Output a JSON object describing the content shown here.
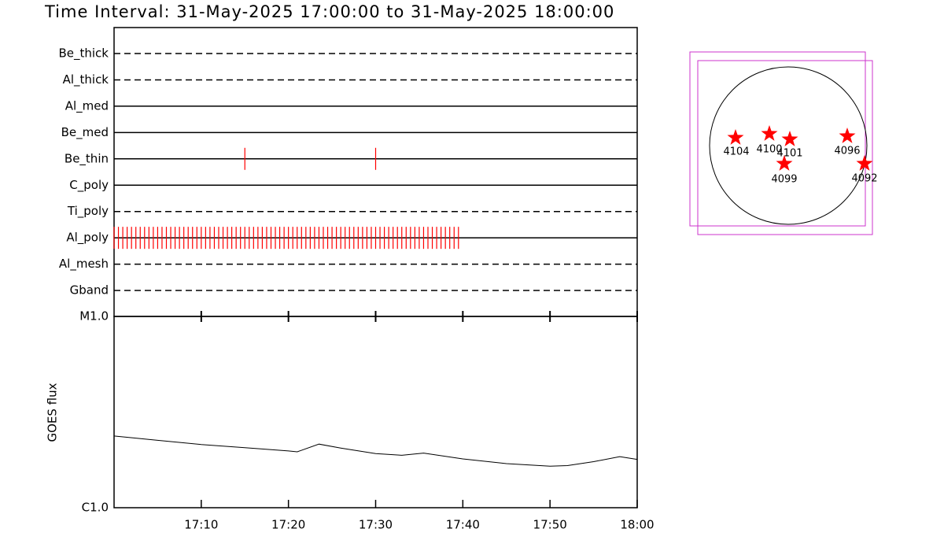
{
  "title": "Time Interval: 31-May-2025 17:00:00 to 31-May-2025 18:00:00",
  "chart_data": [
    {
      "type": "timeline",
      "categories": [
        "Be_thick",
        "Al_thick",
        "Al_med",
        "Be_med",
        "Be_thin",
        "C_poly",
        "Ti_poly",
        "Al_poly",
        "Al_mesh",
        "Gband"
      ],
      "line_styles": [
        "dashed",
        "dashed",
        "solid",
        "solid",
        "solid",
        "solid",
        "dashed",
        "solid",
        "dashed",
        "dashed"
      ],
      "xlim": [
        0,
        60
      ],
      "color": "#ff0000",
      "series": [
        {
          "name": "Be_thin",
          "x": [
            15,
            30
          ]
        },
        {
          "name": "Al_poly",
          "x": [
            0,
            0.5,
            1,
            1.5,
            2,
            2.5,
            3,
            3.5,
            4,
            4.5,
            5,
            5.5,
            6,
            6.5,
            7,
            7.5,
            8,
            8.5,
            9,
            9.5,
            10,
            10.5,
            11,
            11.5,
            12,
            12.5,
            13,
            13.5,
            14,
            14.5,
            15,
            15.5,
            16,
            16.5,
            17,
            17.5,
            18,
            18.5,
            19,
            19.5,
            20,
            20.5,
            21,
            21.5,
            22,
            22.5,
            23,
            23.5,
            24,
            24.5,
            25,
            25.5,
            26,
            26.5,
            27,
            27.5,
            28,
            28.5,
            29,
            29.5,
            30,
            30.5,
            31,
            31.5,
            32,
            32.5,
            33,
            33.5,
            34,
            34.5,
            35,
            35.5,
            36,
            36.5,
            37,
            37.5,
            38,
            38.5,
            39,
            39.5
          ]
        }
      ]
    },
    {
      "type": "line",
      "y_label": "GOES flux",
      "log_scale": true,
      "xlim": [
        0,
        60
      ],
      "xticks": [
        {
          "value": 10,
          "label": "17:10"
        },
        {
          "value": 20,
          "label": "17:20"
        },
        {
          "value": 30,
          "label": "17:30"
        },
        {
          "value": 40,
          "label": "17:40"
        },
        {
          "value": 50,
          "label": "17:50"
        },
        {
          "value": 60,
          "label": "18:00"
        }
      ],
      "ylim": [
        1e-06,
        1e-05
      ],
      "yticks": [
        {
          "value": 1e-06,
          "label": "C1.0"
        },
        {
          "value": 1e-05,
          "label": "M1.0"
        }
      ],
      "color": "#000000",
      "x": [
        0,
        5,
        10,
        15,
        20,
        21,
        23.5,
        26,
        30,
        33,
        35.5,
        40,
        45,
        50,
        52,
        55,
        58,
        60
      ],
      "values": [
        2.37e-06,
        2.25e-06,
        2.14e-06,
        2.06e-06,
        1.98e-06,
        1.96e-06,
        2.15e-06,
        2.05e-06,
        1.92e-06,
        1.88e-06,
        1.93e-06,
        1.8e-06,
        1.7e-06,
        1.65e-06,
        1.66e-06,
        1.74e-06,
        1.85e-06,
        1.79e-06
      ]
    }
  ],
  "sun_map": {
    "regions": [
      "4104",
      "4100",
      "4101",
      "4096",
      "4099",
      "4092"
    ]
  }
}
